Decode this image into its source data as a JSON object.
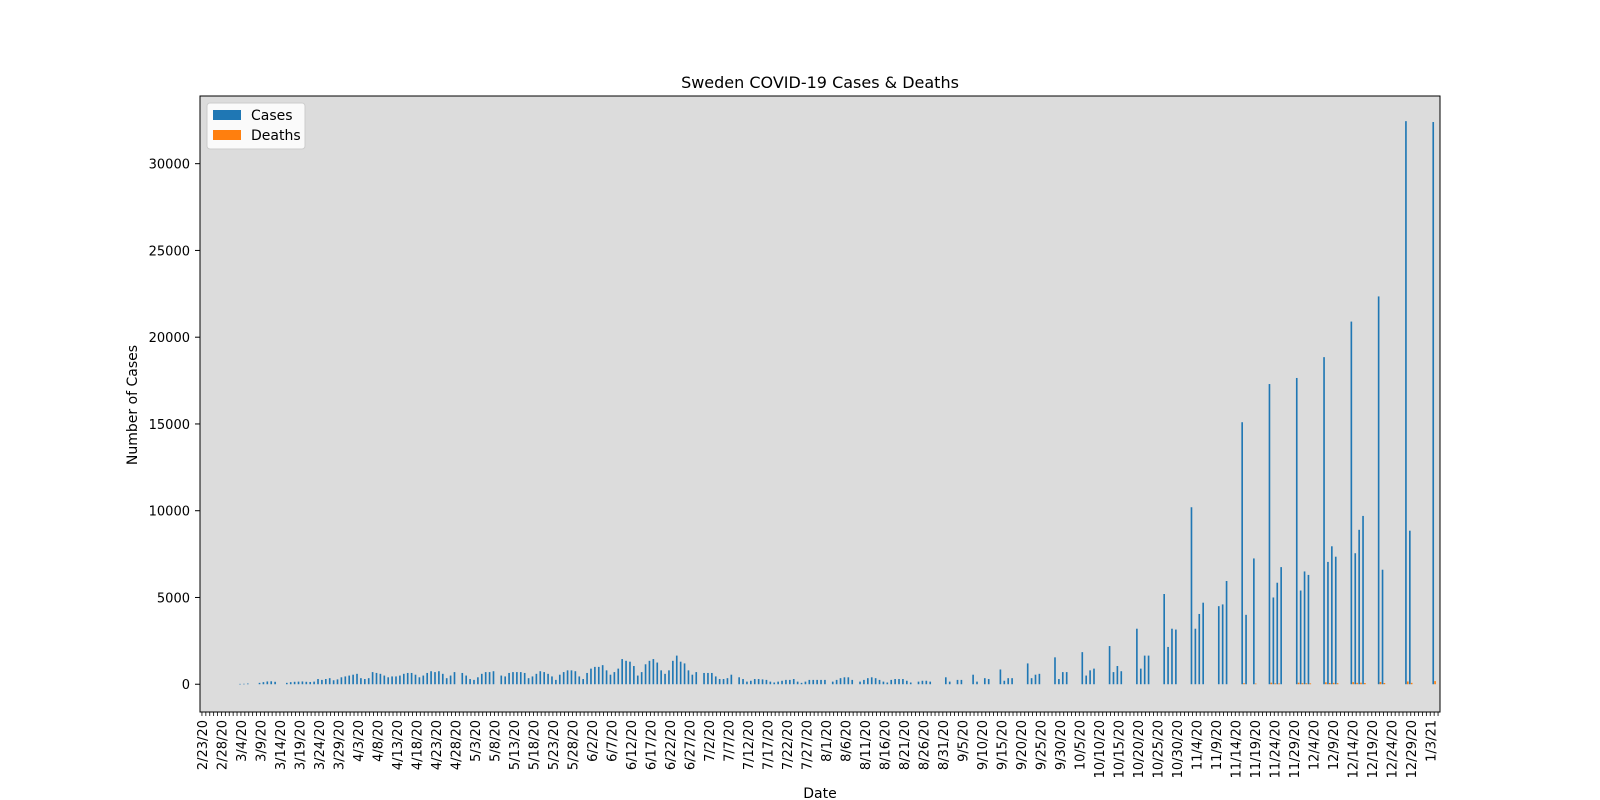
{
  "chart_data": {
    "type": "bar",
    "title": "Sweden COVID-19 Cases & Deaths",
    "xlabel": "Date",
    "ylabel": "Number of Cases",
    "ylim": [
      -1600,
      33900
    ],
    "yticks": [
      0,
      5000,
      10000,
      15000,
      20000,
      25000,
      30000
    ],
    "legend_placement": "upper-left",
    "plot_background": "#dcdcdc",
    "grid": false,
    "x_start": "2020-02-23",
    "x_end": "2021-01-05",
    "xtick_labels": [
      "2/23/20",
      "2/28/20",
      "3/4/20",
      "3/9/20",
      "3/14/20",
      "3/19/20",
      "3/24/20",
      "3/29/20",
      "4/3/20",
      "4/8/20",
      "4/13/20",
      "4/18/20",
      "4/23/20",
      "4/28/20",
      "5/3/20",
      "5/8/20",
      "5/13/20",
      "5/18/20",
      "5/23/20",
      "5/28/20",
      "6/2/20",
      "6/7/20",
      "6/12/20",
      "6/17/20",
      "6/22/20",
      "6/27/20",
      "7/2/20",
      "7/7/20",
      "7/12/20",
      "7/17/20",
      "7/22/20",
      "7/27/20",
      "8/1/20",
      "8/6/20",
      "8/11/20",
      "8/16/20",
      "8/21/20",
      "8/26/20",
      "8/31/20",
      "9/5/20",
      "9/10/20",
      "9/15/20",
      "9/20/20",
      "9/25/20",
      "9/30/20",
      "10/5/20",
      "10/10/20",
      "10/15/20",
      "10/20/20",
      "10/25/20",
      "10/30/20",
      "11/4/20",
      "11/9/20",
      "11/14/20",
      "11/19/20",
      "11/24/20",
      "11/29/20",
      "12/4/20",
      "12/9/20",
      "12/14/20",
      "12/19/20",
      "12/24/20",
      "12/29/20",
      "1/3/21"
    ],
    "series": [
      {
        "name": "Cases",
        "color": "#1f77b4",
        "points": [
          [
            "2020-03-04",
            20
          ],
          [
            "2020-03-05",
            25
          ],
          [
            "2020-03-06",
            40
          ],
          [
            "2020-03-09",
            80
          ],
          [
            "2020-03-10",
            120
          ],
          [
            "2020-03-11",
            160
          ],
          [
            "2020-03-12",
            170
          ],
          [
            "2020-03-13",
            140
          ],
          [
            "2020-03-16",
            80
          ],
          [
            "2020-03-17",
            120
          ],
          [
            "2020-03-18",
            140
          ],
          [
            "2020-03-19",
            150
          ],
          [
            "2020-03-20",
            160
          ],
          [
            "2020-03-21",
            140
          ],
          [
            "2020-03-22",
            130
          ],
          [
            "2020-03-23",
            150
          ],
          [
            "2020-03-24",
            300
          ],
          [
            "2020-03-25",
            250
          ],
          [
            "2020-03-26",
            300
          ],
          [
            "2020-03-27",
            350
          ],
          [
            "2020-03-28",
            230
          ],
          [
            "2020-03-29",
            280
          ],
          [
            "2020-03-30",
            400
          ],
          [
            "2020-03-31",
            450
          ],
          [
            "2020-04-01",
            500
          ],
          [
            "2020-04-02",
            550
          ],
          [
            "2020-04-03",
            600
          ],
          [
            "2020-04-04",
            350
          ],
          [
            "2020-04-05",
            300
          ],
          [
            "2020-04-06",
            350
          ],
          [
            "2020-04-07",
            700
          ],
          [
            "2020-04-08",
            650
          ],
          [
            "2020-04-09",
            600
          ],
          [
            "2020-04-10",
            500
          ],
          [
            "2020-04-11",
            400
          ],
          [
            "2020-04-12",
            450
          ],
          [
            "2020-04-13",
            450
          ],
          [
            "2020-04-14",
            500
          ],
          [
            "2020-04-15",
            600
          ],
          [
            "2020-04-16",
            650
          ],
          [
            "2020-04-17",
            650
          ],
          [
            "2020-04-18",
            550
          ],
          [
            "2020-04-19",
            400
          ],
          [
            "2020-04-20",
            500
          ],
          [
            "2020-04-21",
            650
          ],
          [
            "2020-04-22",
            750
          ],
          [
            "2020-04-23",
            700
          ],
          [
            "2020-04-24",
            750
          ],
          [
            "2020-04-25",
            600
          ],
          [
            "2020-04-26",
            350
          ],
          [
            "2020-04-27",
            500
          ],
          [
            "2020-04-28",
            700
          ],
          [
            "2020-04-30",
            650
          ],
          [
            "2020-05-01",
            500
          ],
          [
            "2020-05-02",
            300
          ],
          [
            "2020-05-03",
            250
          ],
          [
            "2020-05-04",
            400
          ],
          [
            "2020-05-05",
            600
          ],
          [
            "2020-05-06",
            700
          ],
          [
            "2020-05-07",
            700
          ],
          [
            "2020-05-08",
            750
          ],
          [
            "2020-05-10",
            500
          ],
          [
            "2020-05-11",
            450
          ],
          [
            "2020-05-12",
            650
          ],
          [
            "2020-05-13",
            700
          ],
          [
            "2020-05-14",
            700
          ],
          [
            "2020-05-15",
            700
          ],
          [
            "2020-05-16",
            650
          ],
          [
            "2020-05-17",
            350
          ],
          [
            "2020-05-18",
            450
          ],
          [
            "2020-05-19",
            600
          ],
          [
            "2020-05-20",
            750
          ],
          [
            "2020-05-21",
            700
          ],
          [
            "2020-05-22",
            600
          ],
          [
            "2020-05-23",
            450
          ],
          [
            "2020-05-24",
            250
          ],
          [
            "2020-05-25",
            550
          ],
          [
            "2020-05-26",
            700
          ],
          [
            "2020-05-27",
            800
          ],
          [
            "2020-05-28",
            800
          ],
          [
            "2020-05-29",
            750
          ],
          [
            "2020-05-30",
            450
          ],
          [
            "2020-05-31",
            300
          ],
          [
            "2020-06-01",
            650
          ],
          [
            "2020-06-02",
            900
          ],
          [
            "2020-06-03",
            1000
          ],
          [
            "2020-06-04",
            1000
          ],
          [
            "2020-06-05",
            1100
          ],
          [
            "2020-06-06",
            800
          ],
          [
            "2020-06-07",
            550
          ],
          [
            "2020-06-08",
            700
          ],
          [
            "2020-06-09",
            900
          ],
          [
            "2020-06-10",
            1450
          ],
          [
            "2020-06-11",
            1350
          ],
          [
            "2020-06-12",
            1300
          ],
          [
            "2020-06-13",
            1050
          ],
          [
            "2020-06-14",
            500
          ],
          [
            "2020-06-15",
            700
          ],
          [
            "2020-06-16",
            1150
          ],
          [
            "2020-06-17",
            1350
          ],
          [
            "2020-06-18",
            1450
          ],
          [
            "2020-06-19",
            1250
          ],
          [
            "2020-06-20",
            800
          ],
          [
            "2020-06-21",
            600
          ],
          [
            "2020-06-22",
            800
          ],
          [
            "2020-06-23",
            1350
          ],
          [
            "2020-06-24",
            1650
          ],
          [
            "2020-06-25",
            1300
          ],
          [
            "2020-06-26",
            1200
          ],
          [
            "2020-06-27",
            800
          ],
          [
            "2020-06-28",
            550
          ],
          [
            "2020-06-29",
            700
          ],
          [
            "2020-07-01",
            650
          ],
          [
            "2020-07-02",
            650
          ],
          [
            "2020-07-03",
            650
          ],
          [
            "2020-07-04",
            450
          ],
          [
            "2020-07-05",
            300
          ],
          [
            "2020-07-06",
            300
          ],
          [
            "2020-07-07",
            350
          ],
          [
            "2020-07-08",
            550
          ],
          [
            "2020-07-10",
            400
          ],
          [
            "2020-07-11",
            300
          ],
          [
            "2020-07-12",
            150
          ],
          [
            "2020-07-13",
            200
          ],
          [
            "2020-07-14",
            300
          ],
          [
            "2020-07-15",
            300
          ],
          [
            "2020-07-16",
            280
          ],
          [
            "2020-07-17",
            250
          ],
          [
            "2020-07-18",
            150
          ],
          [
            "2020-07-19",
            100
          ],
          [
            "2020-07-20",
            150
          ],
          [
            "2020-07-21",
            200
          ],
          [
            "2020-07-22",
            250
          ],
          [
            "2020-07-23",
            250
          ],
          [
            "2020-07-24",
            300
          ],
          [
            "2020-07-25",
            150
          ],
          [
            "2020-07-26",
            80
          ],
          [
            "2020-07-27",
            150
          ],
          [
            "2020-07-28",
            250
          ],
          [
            "2020-07-29",
            250
          ],
          [
            "2020-07-30",
            250
          ],
          [
            "2020-07-31",
            250
          ],
          [
            "2020-08-01",
            250
          ],
          [
            "2020-08-03",
            150
          ],
          [
            "2020-08-04",
            250
          ],
          [
            "2020-08-05",
            350
          ],
          [
            "2020-08-06",
            400
          ],
          [
            "2020-08-07",
            400
          ],
          [
            "2020-08-08",
            250
          ],
          [
            "2020-08-10",
            150
          ],
          [
            "2020-08-11",
            250
          ],
          [
            "2020-08-12",
            350
          ],
          [
            "2020-08-13",
            400
          ],
          [
            "2020-08-14",
            350
          ],
          [
            "2020-08-15",
            250
          ],
          [
            "2020-08-16",
            150
          ],
          [
            "2020-08-17",
            100
          ],
          [
            "2020-08-18",
            250
          ],
          [
            "2020-08-19",
            300
          ],
          [
            "2020-08-20",
            300
          ],
          [
            "2020-08-21",
            300
          ],
          [
            "2020-08-22",
            200
          ],
          [
            "2020-08-23",
            100
          ],
          [
            "2020-08-25",
            150
          ],
          [
            "2020-08-26",
            200
          ],
          [
            "2020-08-27",
            200
          ],
          [
            "2020-08-28",
            150
          ],
          [
            "2020-09-01",
            400
          ],
          [
            "2020-09-02",
            150
          ],
          [
            "2020-09-04",
            250
          ],
          [
            "2020-09-05",
            250
          ],
          [
            "2020-09-08",
            550
          ],
          [
            "2020-09-09",
            150
          ],
          [
            "2020-09-11",
            350
          ],
          [
            "2020-09-12",
            300
          ],
          [
            "2020-09-15",
            850
          ],
          [
            "2020-09-16",
            200
          ],
          [
            "2020-09-17",
            350
          ],
          [
            "2020-09-18",
            350
          ],
          [
            "2020-09-22",
            1200
          ],
          [
            "2020-09-23",
            350
          ],
          [
            "2020-09-24",
            550
          ],
          [
            "2020-09-25",
            600
          ],
          [
            "2020-09-29",
            1550
          ],
          [
            "2020-09-30",
            300
          ],
          [
            "2020-10-01",
            700
          ],
          [
            "2020-10-02",
            700
          ],
          [
            "2020-10-06",
            1850
          ],
          [
            "2020-10-07",
            500
          ],
          [
            "2020-10-08",
            800
          ],
          [
            "2020-10-09",
            900
          ],
          [
            "2020-10-13",
            2200
          ],
          [
            "2020-10-14",
            700
          ],
          [
            "2020-10-15",
            1050
          ],
          [
            "2020-10-16",
            750
          ],
          [
            "2020-10-20",
            3200
          ],
          [
            "2020-10-21",
            900
          ],
          [
            "2020-10-22",
            1650
          ],
          [
            "2020-10-23",
            1650
          ],
          [
            "2020-10-27",
            5200
          ],
          [
            "2020-10-28",
            2150
          ],
          [
            "2020-10-29",
            3200
          ],
          [
            "2020-10-30",
            3150
          ],
          [
            "2020-11-03",
            10200
          ],
          [
            "2020-11-04",
            3200
          ],
          [
            "2020-11-05",
            4050
          ],
          [
            "2020-11-06",
            4700
          ],
          [
            "2020-11-10",
            4500
          ],
          [
            "2020-11-11",
            4600
          ],
          [
            "2020-11-12",
            5950
          ],
          [
            "2020-11-16",
            15100
          ],
          [
            "2020-11-17",
            4000
          ],
          [
            "2020-11-19",
            7250
          ],
          [
            "2020-11-23",
            17300
          ],
          [
            "2020-11-24",
            5000
          ],
          [
            "2020-11-25",
            5850
          ],
          [
            "2020-11-26",
            6750
          ],
          [
            "2020-11-30",
            17650
          ],
          [
            "2020-12-01",
            5400
          ],
          [
            "2020-12-02",
            6500
          ],
          [
            "2020-12-03",
            6300
          ],
          [
            "2020-12-07",
            18850
          ],
          [
            "2020-12-08",
            7050
          ],
          [
            "2020-12-09",
            7950
          ],
          [
            "2020-12-10",
            7350
          ],
          [
            "2020-12-14",
            20900
          ],
          [
            "2020-12-15",
            7550
          ],
          [
            "2020-12-16",
            8900
          ],
          [
            "2020-12-17",
            9700
          ],
          [
            "2020-12-21",
            22350
          ],
          [
            "2020-12-22",
            6600
          ],
          [
            "2020-12-28",
            32450
          ],
          [
            "2020-12-29",
            8850
          ],
          [
            "2021-01-04",
            32400
          ]
        ]
      },
      {
        "name": "Deaths",
        "color": "#ff7f0e",
        "points": [
          [
            "2020-11-16",
            60
          ],
          [
            "2020-11-19",
            40
          ],
          [
            "2020-11-23",
            90
          ],
          [
            "2020-11-24",
            50
          ],
          [
            "2020-11-25",
            45
          ],
          [
            "2020-11-30",
            90
          ],
          [
            "2020-12-01",
            60
          ],
          [
            "2020-12-02",
            55
          ],
          [
            "2020-12-03",
            50
          ],
          [
            "2020-12-07",
            110
          ],
          [
            "2020-12-08",
            70
          ],
          [
            "2020-12-09",
            80
          ],
          [
            "2020-12-10",
            60
          ],
          [
            "2020-12-14",
            120
          ],
          [
            "2020-12-15",
            80
          ],
          [
            "2020-12-16",
            90
          ],
          [
            "2020-12-17",
            70
          ],
          [
            "2020-12-21",
            130
          ],
          [
            "2020-12-22",
            70
          ],
          [
            "2020-12-28",
            160
          ],
          [
            "2020-12-29",
            80
          ],
          [
            "2021-01-04",
            180
          ]
        ]
      }
    ]
  }
}
